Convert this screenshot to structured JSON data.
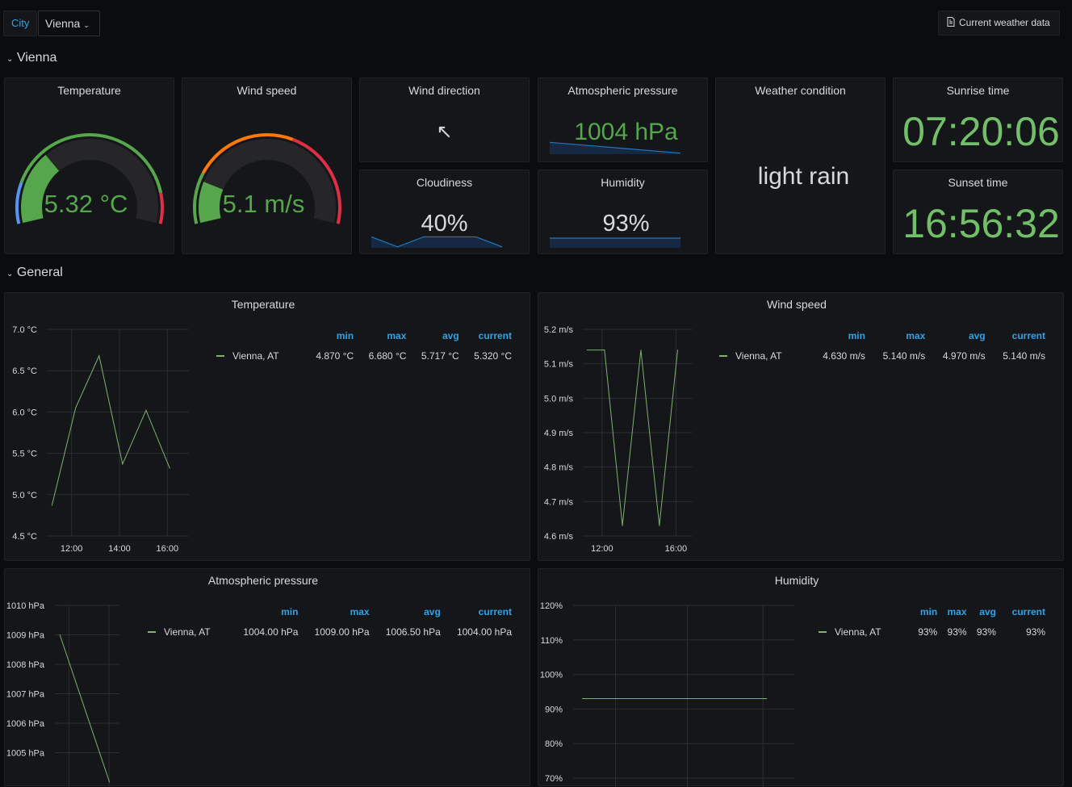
{
  "topbar": {
    "variable_label": "City",
    "variable_value": "Vienna",
    "link_button": "Current weather data",
    "link_icon": "document-icon"
  },
  "rows": [
    {
      "title": "Vienna"
    },
    {
      "title": "General"
    }
  ],
  "stats": {
    "temperature": {
      "title": "Temperature",
      "value": "5.32 °C",
      "fraction": 0.306,
      "thresholds": [
        {
          "to": 0.16,
          "color": "#5794f2"
        },
        {
          "to": 0.88,
          "color": "#56a64b"
        },
        {
          "to": 1,
          "color": "#e02f44"
        }
      ]
    },
    "wind_speed": {
      "title": "Wind speed",
      "value": "5.1 m/s",
      "fraction": 0.17,
      "thresholds": [
        {
          "to": 0.2,
          "color": "#56a64b"
        },
        {
          "to": 0.6,
          "color": "#ff780a"
        },
        {
          "to": 1,
          "color": "#e02f44"
        }
      ]
    },
    "wind_direction": {
      "title": "Wind direction",
      "value": "↖"
    },
    "pressure": {
      "title": "Atmospheric pressure",
      "value": "1004 hPa",
      "spark": [
        1009,
        1004
      ]
    },
    "cloudiness": {
      "title": "Cloudiness",
      "value": "40%",
      "spark": [
        40,
        20,
        40,
        40,
        40,
        20
      ]
    },
    "humidity": {
      "title": "Humidity",
      "value": "93%",
      "spark": [
        93,
        93
      ]
    },
    "condition": {
      "title": "Weather condition",
      "value": "light rain"
    },
    "sunrise": {
      "title": "Sunrise time",
      "value": "07:20:06"
    },
    "sunset": {
      "title": "Sunset time",
      "value": "16:56:32"
    }
  },
  "colors": {
    "green": "#73bf69",
    "series": "#7eb26d",
    "blue": "#33a2e5"
  },
  "chart_data": [
    {
      "type": "line",
      "title": "Temperature",
      "series": [
        {
          "name": "Vienna, AT",
          "x": [
            11.18,
            12.17,
            13.15,
            14.13,
            15.11,
            16.1
          ],
          "y": [
            4.87,
            6.05,
            6.68,
            5.37,
            6.02,
            5.32
          ]
        }
      ],
      "xticks": [
        {
          "v": 12,
          "label": "12:00"
        },
        {
          "v": 14,
          "label": "14:00"
        },
        {
          "v": 16,
          "label": "16:00"
        }
      ],
      "xlim": [
        11,
        16.9
      ],
      "ylim": [
        4.5,
        7.0
      ],
      "yticks": [
        {
          "v": 7.0,
          "label": "7.0 °C"
        },
        {
          "v": 6.5,
          "label": "6.5 °C"
        },
        {
          "v": 6.0,
          "label": "6.0 °C"
        },
        {
          "v": 5.5,
          "label": "5.5 °C"
        },
        {
          "v": 5.0,
          "label": "5.0 °C"
        },
        {
          "v": 4.5,
          "label": "4.5 °C"
        }
      ],
      "legend": {
        "headers": [
          "min",
          "max",
          "avg",
          "current"
        ],
        "rows": [
          {
            "name": "Vienna, AT",
            "values": [
              "4.870 °C",
              "6.680 °C",
              "5.717 °C",
              "5.320 °C"
            ]
          }
        ]
      }
    },
    {
      "type": "line",
      "title": "Wind speed",
      "series": [
        {
          "name": "Vienna, AT",
          "x": [
            11.19,
            12.13,
            13.1,
            14.1,
            15.1,
            16.09
          ],
          "y": [
            5.14,
            5.14,
            4.63,
            5.14,
            4.63,
            5.14
          ]
        }
      ],
      "xticks": [
        {
          "v": 12,
          "label": "12:00"
        },
        {
          "v": 16,
          "label": "16:00"
        }
      ],
      "xlim": [
        11,
        16.9
      ],
      "ylim": [
        4.6,
        5.2
      ],
      "yticks": [
        {
          "v": 5.2,
          "label": "5.2 m/s"
        },
        {
          "v": 5.1,
          "label": "5.1 m/s"
        },
        {
          "v": 5.0,
          "label": "5.0 m/s"
        },
        {
          "v": 4.9,
          "label": "4.9 m/s"
        },
        {
          "v": 4.8,
          "label": "4.8 m/s"
        },
        {
          "v": 4.7,
          "label": "4.7 m/s"
        },
        {
          "v": 4.6,
          "label": "4.6 m/s"
        }
      ],
      "legend": {
        "headers": [
          "min",
          "max",
          "avg",
          "current"
        ],
        "rows": [
          {
            "name": "Vienna, AT",
            "values": [
              "4.630 m/s",
              "5.140 m/s",
              "4.970 m/s",
              "5.140 m/s"
            ]
          }
        ]
      }
    },
    {
      "type": "line",
      "title": "Atmospheric pressure",
      "series": [
        {
          "name": "Vienna, AT",
          "x": [
            0,
            1
          ],
          "y": [
            1009,
            1004
          ]
        }
      ],
      "xticks": [
        {
          "v": 0.18,
          "label": ""
        },
        {
          "v": 0.99,
          "label": ""
        }
      ],
      "xlim": [
        -0.1,
        1.2
      ],
      "ylim": [
        1004,
        1010
      ],
      "yticks": [
        {
          "v": 1010,
          "label": "1010 hPa"
        },
        {
          "v": 1009,
          "label": "1009 hPa"
        },
        {
          "v": 1008,
          "label": "1008 hPa"
        },
        {
          "v": 1007,
          "label": "1007 hPa"
        },
        {
          "v": 1006,
          "label": "1006 hPa"
        },
        {
          "v": 1005,
          "label": "1005 hPa"
        }
      ],
      "legend": {
        "headers": [
          "min",
          "max",
          "avg",
          "current"
        ],
        "rows": [
          {
            "name": "Vienna, AT",
            "values": [
              "1004.00 hPa",
              "1009.00 hPa",
              "1006.50 hPa",
              "1004.00 hPa"
            ]
          }
        ]
      }
    },
    {
      "type": "line",
      "title": "Humidity",
      "series": [
        {
          "name": "Vienna, AT",
          "x": [
            0,
            1
          ],
          "y": [
            93,
            93
          ]
        }
      ],
      "xticks": [
        {
          "v": 0.18,
          "label": ""
        },
        {
          "v": 0.57,
          "label": ""
        },
        {
          "v": 0.98,
          "label": ""
        }
      ],
      "xlim": [
        -0.05,
        1.15
      ],
      "ylim": [
        70,
        120
      ],
      "yticks": [
        {
          "v": 120,
          "label": "120%"
        },
        {
          "v": 110,
          "label": "110%"
        },
        {
          "v": 100,
          "label": "100%"
        },
        {
          "v": 90,
          "label": "90%"
        },
        {
          "v": 80,
          "label": "80%"
        },
        {
          "v": 70,
          "label": "70%"
        }
      ],
      "legend": {
        "headers": [
          "min",
          "max",
          "avg",
          "current"
        ],
        "rows": [
          {
            "name": "Vienna, AT",
            "values": [
              "93%",
              "93%",
              "93%",
              "93%"
            ]
          }
        ]
      }
    }
  ]
}
